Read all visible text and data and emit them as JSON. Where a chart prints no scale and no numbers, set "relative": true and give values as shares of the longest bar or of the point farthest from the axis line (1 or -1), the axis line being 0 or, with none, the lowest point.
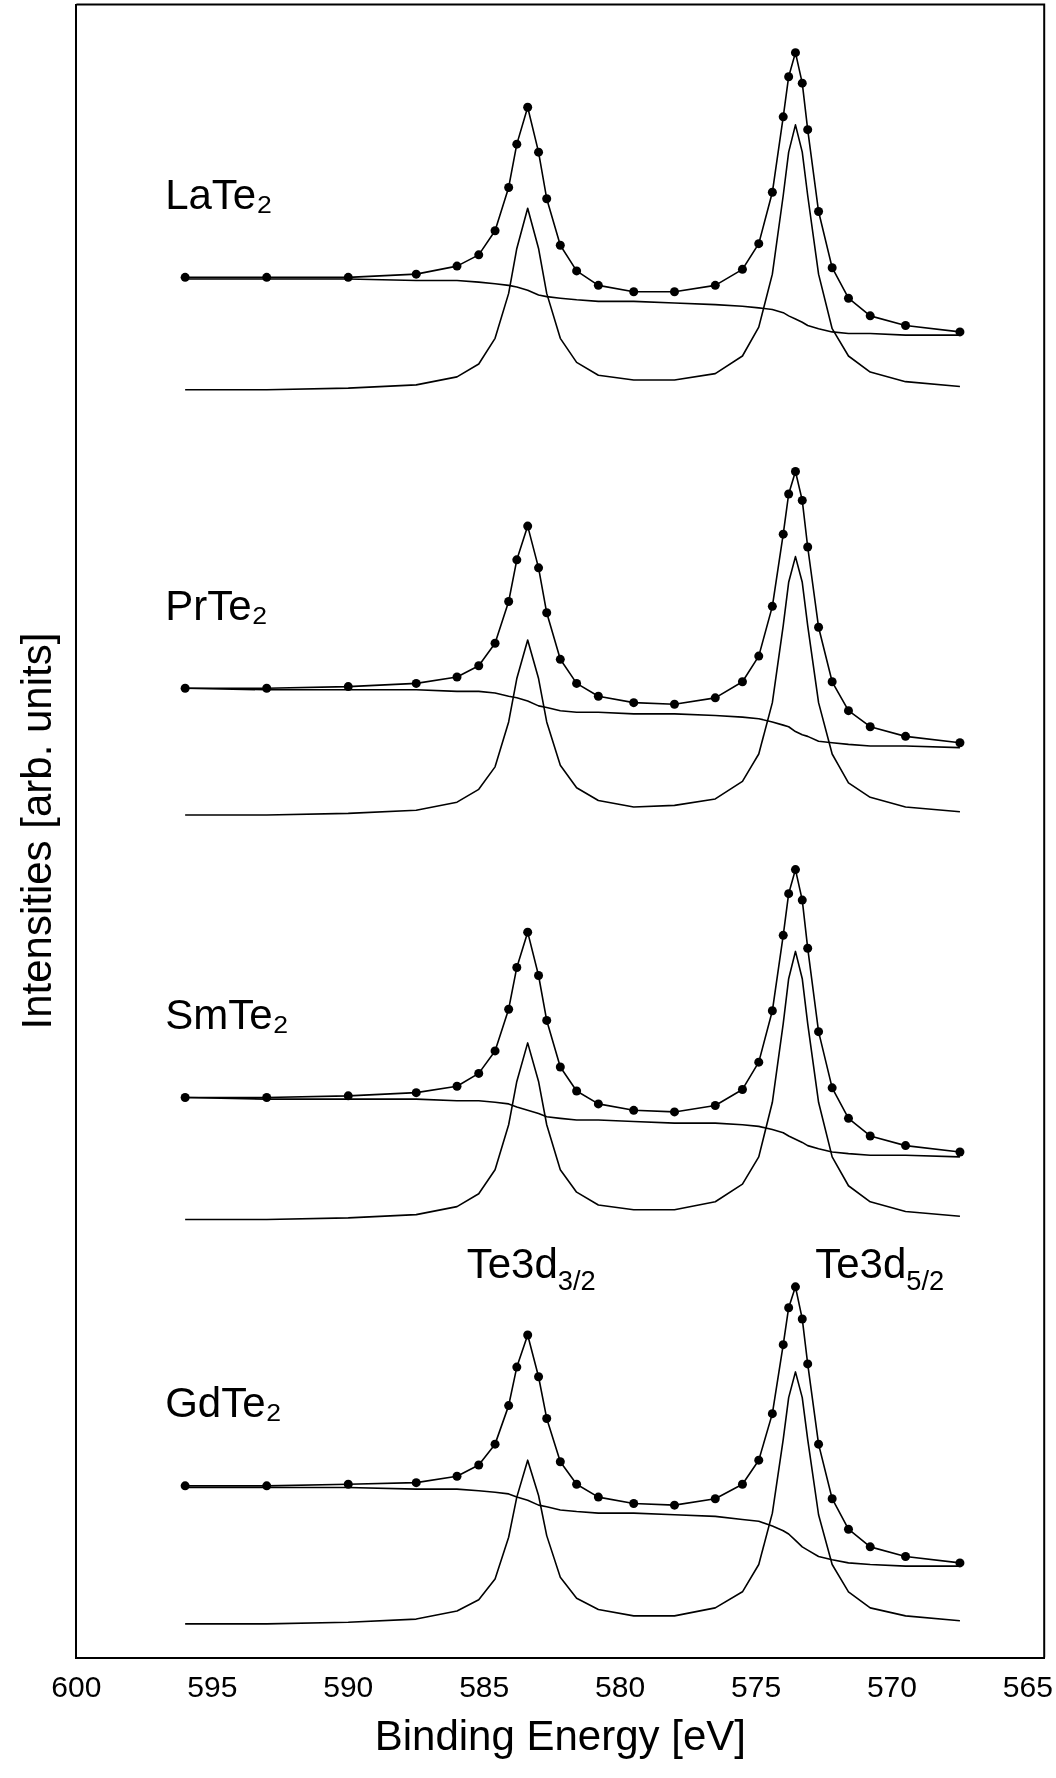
{
  "chart_data": {
    "type": "line",
    "relative": true,
    "xlabel": "Binding Energy [eV]",
    "ylabel": "Intensities [arb. units]",
    "xlim": [
      600,
      564.4
    ],
    "xticks": [
      600,
      595,
      590,
      585,
      580,
      575,
      570,
      565
    ],
    "tick_labels": "x",
    "x": [
      596,
      593,
      590,
      587.5,
      586,
      585.2,
      584.6,
      584.1,
      583.8,
      583.4,
      583.0,
      582.7,
      582.2,
      581.6,
      580.8,
      579.5,
      578,
      576.5,
      575.5,
      574.9,
      574.4,
      574.0,
      573.8,
      573.55,
      573.3,
      573.1,
      572.7,
      572.2,
      571.6,
      570.8,
      569.5,
      567.5
    ],
    "series": [
      {
        "name": "LaTe₂",
        "marker": "circle",
        "color": "#000000",
        "values": [
          0.86,
          0.86,
          0.86,
          0.862,
          0.867,
          0.874,
          0.889,
          0.916,
          0.943,
          0.966,
          0.938,
          0.909,
          0.88,
          0.864,
          0.855,
          0.851,
          0.851,
          0.855,
          0.865,
          0.881,
          0.913,
          0.96,
          0.985,
          1.0,
          0.981,
          0.952,
          0.901,
          0.866,
          0.847,
          0.836,
          0.83,
          0.826
        ]
      },
      {
        "type": "line",
        "marker": "none",
        "color": "#000000",
        "values": [
          0.859,
          0.859,
          0.859,
          0.858,
          0.858,
          0.857,
          0.856,
          0.855,
          0.854,
          0.852,
          0.849,
          0.848,
          0.847,
          0.846,
          0.845,
          0.845,
          0.844,
          0.843,
          0.842,
          0.841,
          0.84,
          0.838,
          0.836,
          0.834,
          0.832,
          0.83,
          0.828,
          0.826,
          0.825,
          0.825,
          0.824,
          0.824
        ]
      },
      {
        "type": "line",
        "marker": "none",
        "color": "#000000",
        "values": [
          0.79,
          0.79,
          0.791,
          0.793,
          0.798,
          0.806,
          0.822,
          0.85,
          0.878,
          0.903,
          0.878,
          0.85,
          0.822,
          0.807,
          0.799,
          0.796,
          0.796,
          0.8,
          0.811,
          0.829,
          0.862,
          0.911,
          0.938,
          0.955,
          0.938,
          0.911,
          0.862,
          0.828,
          0.811,
          0.801,
          0.795,
          0.792
        ]
      },
      {
        "name": "PrTe₂",
        "marker": "circle",
        "color": "#000000",
        "values": [
          0.604,
          0.604,
          0.605,
          0.607,
          0.611,
          0.618,
          0.632,
          0.658,
          0.684,
          0.705,
          0.679,
          0.651,
          0.622,
          0.607,
          0.599,
          0.595,
          0.594,
          0.598,
          0.608,
          0.624,
          0.655,
          0.7,
          0.725,
          0.739,
          0.721,
          0.692,
          0.642,
          0.608,
          0.59,
          0.58,
          0.574,
          0.57
        ]
      },
      {
        "type": "line",
        "marker": "none",
        "color": "#000000",
        "values": [
          0.604,
          0.603,
          0.603,
          0.603,
          0.602,
          0.602,
          0.601,
          0.599,
          0.598,
          0.596,
          0.593,
          0.592,
          0.59,
          0.589,
          0.589,
          0.588,
          0.588,
          0.587,
          0.586,
          0.585,
          0.583,
          0.581,
          0.58,
          0.577,
          0.575,
          0.574,
          0.571,
          0.57,
          0.569,
          0.568,
          0.568,
          0.567
        ]
      },
      {
        "type": "line",
        "marker": "none",
        "color": "#000000",
        "values": [
          0.525,
          0.525,
          0.526,
          0.528,
          0.533,
          0.541,
          0.555,
          0.583,
          0.61,
          0.634,
          0.61,
          0.583,
          0.556,
          0.542,
          0.534,
          0.53,
          0.531,
          0.535,
          0.546,
          0.563,
          0.595,
          0.643,
          0.67,
          0.686,
          0.67,
          0.643,
          0.595,
          0.563,
          0.545,
          0.536,
          0.53,
          0.527
        ]
      },
      {
        "name": "SmTe₂",
        "marker": "circle",
        "color": "#000000",
        "values": [
          0.349,
          0.349,
          0.35,
          0.352,
          0.356,
          0.364,
          0.378,
          0.404,
          0.43,
          0.452,
          0.425,
          0.397,
          0.368,
          0.353,
          0.345,
          0.341,
          0.34,
          0.344,
          0.354,
          0.371,
          0.403,
          0.45,
          0.476,
          0.491,
          0.472,
          0.442,
          0.39,
          0.355,
          0.336,
          0.325,
          0.319,
          0.315
        ]
      },
      {
        "type": "line",
        "marker": "none",
        "color": "#000000",
        "values": [
          0.349,
          0.348,
          0.348,
          0.348,
          0.347,
          0.347,
          0.346,
          0.345,
          0.343,
          0.341,
          0.339,
          0.337,
          0.336,
          0.335,
          0.335,
          0.334,
          0.333,
          0.333,
          0.332,
          0.331,
          0.329,
          0.327,
          0.325,
          0.323,
          0.321,
          0.319,
          0.317,
          0.315,
          0.314,
          0.313,
          0.313,
          0.312
        ]
      },
      {
        "type": "line",
        "marker": "none",
        "color": "#000000",
        "values": [
          0.273,
          0.273,
          0.274,
          0.276,
          0.281,
          0.289,
          0.304,
          0.332,
          0.359,
          0.383,
          0.359,
          0.332,
          0.304,
          0.29,
          0.282,
          0.279,
          0.279,
          0.284,
          0.295,
          0.312,
          0.346,
          0.395,
          0.423,
          0.44,
          0.423,
          0.395,
          0.346,
          0.312,
          0.294,
          0.284,
          0.278,
          0.275
        ]
      },
      {
        "name": "GdTe₂",
        "marker": "circle",
        "color": "#000000",
        "values": [
          0.107,
          0.107,
          0.108,
          0.109,
          0.113,
          0.12,
          0.133,
          0.157,
          0.181,
          0.201,
          0.175,
          0.149,
          0.122,
          0.108,
          0.1,
          0.096,
          0.095,
          0.099,
          0.108,
          0.123,
          0.152,
          0.195,
          0.218,
          0.231,
          0.211,
          0.183,
          0.133,
          0.099,
          0.08,
          0.069,
          0.063,
          0.059
        ]
      },
      {
        "type": "line",
        "marker": "none",
        "color": "#000000",
        "values": [
          0.106,
          0.106,
          0.106,
          0.105,
          0.105,
          0.104,
          0.103,
          0.102,
          0.1,
          0.098,
          0.095,
          0.094,
          0.092,
          0.091,
          0.09,
          0.09,
          0.089,
          0.088,
          0.086,
          0.085,
          0.082,
          0.079,
          0.077,
          0.073,
          0.069,
          0.067,
          0.063,
          0.061,
          0.059,
          0.058,
          0.057,
          0.057
        ]
      },
      {
        "type": "line",
        "marker": "none",
        "color": "#000000",
        "values": [
          0.021,
          0.021,
          0.022,
          0.024,
          0.029,
          0.036,
          0.049,
          0.075,
          0.1,
          0.123,
          0.101,
          0.076,
          0.05,
          0.037,
          0.03,
          0.026,
          0.026,
          0.031,
          0.041,
          0.058,
          0.09,
          0.136,
          0.162,
          0.178,
          0.162,
          0.136,
          0.089,
          0.058,
          0.041,
          0.031,
          0.026,
          0.023
        ]
      }
    ],
    "annotations": [
      "Te3d$_{3/2}$",
      "Te3d$_{5/2}$"
    ]
  }
}
